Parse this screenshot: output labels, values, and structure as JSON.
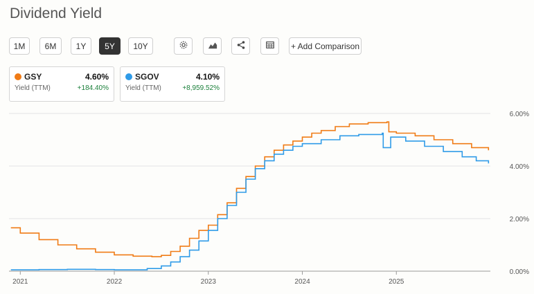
{
  "page": {
    "title": "Dividend Yield"
  },
  "toolbar": {
    "ranges": [
      "1M",
      "6M",
      "1Y",
      "5Y",
      "10Y"
    ],
    "active_range": "5Y",
    "icons": [
      "gear-icon",
      "area-chart-icon",
      "share-icon",
      "table-icon"
    ],
    "add_comparison": "+ Add Comparison"
  },
  "cards": [
    {
      "ticker": "GSY",
      "color": "#f07b15",
      "value": "4.60%",
      "sublabel": "Yield (TTM)",
      "change": "+184.40%"
    },
    {
      "ticker": "SGOV",
      "color": "#2f9be8",
      "value": "4.10%",
      "sublabel": "Yield (TTM)",
      "change": "+8,959.52%"
    }
  ],
  "chart_data": {
    "type": "line",
    "x_tick_labels": [
      "2021",
      "2022",
      "2023",
      "2024",
      "2025"
    ],
    "y_tick_labels": [
      "6.00%",
      "4.00%",
      "2.00%",
      "0.00%"
    ],
    "ylim": [
      0,
      6
    ],
    "grid": true,
    "y_axis_position": "right",
    "series": [
      {
        "name": "GSY",
        "color": "#f07b15",
        "points": [
          [
            2020.9,
            1.65
          ],
          [
            2021.0,
            1.45
          ],
          [
            2021.2,
            1.2
          ],
          [
            2021.4,
            1.0
          ],
          [
            2021.6,
            0.85
          ],
          [
            2021.8,
            0.72
          ],
          [
            2022.0,
            0.62
          ],
          [
            2022.2,
            0.57
          ],
          [
            2022.4,
            0.55
          ],
          [
            2022.5,
            0.6
          ],
          [
            2022.6,
            0.75
          ],
          [
            2022.7,
            0.95
          ],
          [
            2022.8,
            1.25
          ],
          [
            2022.9,
            1.55
          ],
          [
            2023.0,
            1.75
          ],
          [
            2023.1,
            2.15
          ],
          [
            2023.2,
            2.6
          ],
          [
            2023.3,
            3.15
          ],
          [
            2023.4,
            3.6
          ],
          [
            2023.5,
            4.0
          ],
          [
            2023.6,
            4.35
          ],
          [
            2023.7,
            4.6
          ],
          [
            2023.8,
            4.8
          ],
          [
            2023.9,
            4.95
          ],
          [
            2024.0,
            5.1
          ],
          [
            2024.1,
            5.25
          ],
          [
            2024.2,
            5.35
          ],
          [
            2024.35,
            5.5
          ],
          [
            2024.5,
            5.6
          ],
          [
            2024.7,
            5.65
          ],
          [
            2024.9,
            5.68
          ],
          [
            2024.92,
            5.3
          ],
          [
            2025.0,
            5.25
          ],
          [
            2025.2,
            5.15
          ],
          [
            2025.4,
            5.0
          ],
          [
            2025.6,
            4.85
          ],
          [
            2025.8,
            4.7
          ],
          [
            2025.98,
            4.6
          ]
        ]
      },
      {
        "name": "SGOV",
        "color": "#2f9be8",
        "points": [
          [
            2020.9,
            0.05
          ],
          [
            2021.2,
            0.06
          ],
          [
            2021.5,
            0.07
          ],
          [
            2021.8,
            0.06
          ],
          [
            2022.0,
            0.05
          ],
          [
            2022.2,
            0.05
          ],
          [
            2022.35,
            0.1
          ],
          [
            2022.5,
            0.2
          ],
          [
            2022.6,
            0.35
          ],
          [
            2022.7,
            0.55
          ],
          [
            2022.8,
            0.8
          ],
          [
            2022.9,
            1.15
          ],
          [
            2023.0,
            1.55
          ],
          [
            2023.1,
            2.0
          ],
          [
            2023.2,
            2.5
          ],
          [
            2023.3,
            3.0
          ],
          [
            2023.4,
            3.5
          ],
          [
            2023.5,
            3.9
          ],
          [
            2023.6,
            4.2
          ],
          [
            2023.7,
            4.45
          ],
          [
            2023.8,
            4.6
          ],
          [
            2023.9,
            4.75
          ],
          [
            2024.0,
            4.85
          ],
          [
            2024.2,
            5.0
          ],
          [
            2024.4,
            5.15
          ],
          [
            2024.6,
            5.2
          ],
          [
            2024.85,
            5.25
          ],
          [
            2024.86,
            4.7
          ],
          [
            2024.93,
            4.7
          ],
          [
            2024.94,
            5.1
          ],
          [
            2025.1,
            4.95
          ],
          [
            2025.3,
            4.75
          ],
          [
            2025.5,
            4.55
          ],
          [
            2025.7,
            4.35
          ],
          [
            2025.85,
            4.2
          ],
          [
            2025.98,
            4.1
          ]
        ]
      }
    ]
  }
}
